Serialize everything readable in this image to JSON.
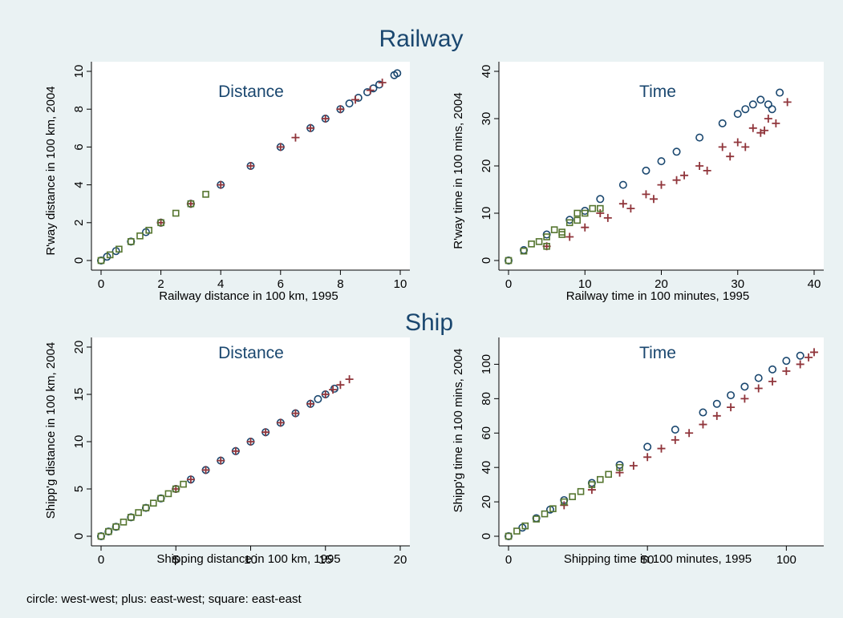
{
  "figure": {
    "background": "#eaf2f3",
    "plot_background": "#ffffff",
    "title_color": "#1a476f",
    "note": "circle: west-west; plus: east-west; square: east-east"
  },
  "groups": {
    "railway": {
      "title": "Railway"
    },
    "ship": {
      "title": "Ship"
    }
  },
  "series_styles": [
    {
      "label": "west-west",
      "marker": "circle",
      "color": "#1a476f"
    },
    {
      "label": "east-west",
      "marker": "plus",
      "color": "#90353b"
    },
    {
      "label": "east-east",
      "marker": "square",
      "color": "#55752f"
    }
  ],
  "chart_data": [
    {
      "id": "railway-distance",
      "type": "scatter",
      "title": "Distance",
      "xlabel": "Railway distance in 100 km, 1995",
      "ylabel": "R'way distance in 100 km, 2004",
      "xlim": [
        0,
        10
      ],
      "ylim": [
        0,
        10
      ],
      "xticks": [
        0,
        2,
        4,
        6,
        8,
        10
      ],
      "yticks": [
        0,
        2,
        4,
        6,
        8,
        10
      ],
      "grid": false,
      "series": [
        {
          "marker": "circle",
          "points": [
            [
              0,
              0
            ],
            [
              0.2,
              0.2
            ],
            [
              0.5,
              0.5
            ],
            [
              1,
              1
            ],
            [
              1.5,
              1.5
            ],
            [
              2,
              2
            ],
            [
              3,
              3
            ],
            [
              4,
              4
            ],
            [
              5,
              5
            ],
            [
              6,
              6
            ],
            [
              7,
              7
            ],
            [
              7.5,
              7.5
            ],
            [
              8,
              8
            ],
            [
              8.3,
              8.3
            ],
            [
              8.6,
              8.6
            ],
            [
              8.9,
              8.9
            ],
            [
              9.1,
              9.1
            ],
            [
              9.3,
              9.3
            ],
            [
              9.8,
              9.8
            ],
            [
              9.9,
              9.9
            ]
          ]
        },
        {
          "marker": "plus",
          "points": [
            [
              2,
              2
            ],
            [
              3,
              3
            ],
            [
              4,
              4
            ],
            [
              5,
              5
            ],
            [
              6,
              6
            ],
            [
              6.5,
              6.5
            ],
            [
              7,
              7
            ],
            [
              7.5,
              7.5
            ],
            [
              8,
              8
            ],
            [
              8.5,
              8.5
            ],
            [
              9,
              9
            ],
            [
              9.4,
              9.4
            ]
          ]
        },
        {
          "marker": "square",
          "points": [
            [
              0,
              0
            ],
            [
              0.3,
              0.3
            ],
            [
              0.6,
              0.6
            ],
            [
              1,
              1
            ],
            [
              1.3,
              1.3
            ],
            [
              1.6,
              1.6
            ],
            [
              2,
              2
            ],
            [
              2.5,
              2.5
            ],
            [
              3,
              3
            ],
            [
              3.5,
              3.5
            ]
          ]
        }
      ]
    },
    {
      "id": "railway-time",
      "type": "scatter",
      "title": "Time",
      "xlabel": "Railway time in 100 minutes, 1995",
      "ylabel": "R'way time in 100 mins, 2004",
      "xlim": [
        0,
        40
      ],
      "ylim": [
        0,
        40
      ],
      "xticks": [
        0,
        10,
        20,
        30,
        40
      ],
      "yticks": [
        0,
        10,
        20,
        30,
        40
      ],
      "grid": false,
      "series": [
        {
          "marker": "circle",
          "points": [
            [
              0,
              0
            ],
            [
              2,
              2.2
            ],
            [
              5,
              5.5
            ],
            [
              8,
              8.6
            ],
            [
              10,
              10.5
            ],
            [
              12,
              13
            ],
            [
              15,
              16
            ],
            [
              18,
              19
            ],
            [
              20,
              21
            ],
            [
              22,
              23
            ],
            [
              25,
              26
            ],
            [
              28,
              29
            ],
            [
              30,
              31
            ],
            [
              31,
              32
            ],
            [
              32,
              33
            ],
            [
              33,
              34
            ],
            [
              34,
              33
            ],
            [
              34.5,
              32
            ],
            [
              35.5,
              35.5
            ]
          ]
        },
        {
          "marker": "plus",
          "points": [
            [
              5,
              3
            ],
            [
              8,
              5
            ],
            [
              10,
              7
            ],
            [
              12,
              10
            ],
            [
              13,
              9
            ],
            [
              15,
              12
            ],
            [
              16,
              11
            ],
            [
              18,
              14
            ],
            [
              19,
              13
            ],
            [
              20,
              16
            ],
            [
              22,
              17
            ],
            [
              23,
              18
            ],
            [
              25,
              20
            ],
            [
              26,
              19
            ],
            [
              28,
              24
            ],
            [
              29,
              22
            ],
            [
              30,
              25
            ],
            [
              31,
              24
            ],
            [
              32,
              28
            ],
            [
              33,
              27
            ],
            [
              34,
              30
            ],
            [
              35,
              29
            ],
            [
              36.5,
              33.5
            ],
            [
              33.5,
              27.5
            ]
          ]
        },
        {
          "marker": "square",
          "points": [
            [
              0,
              0
            ],
            [
              2,
              2
            ],
            [
              3,
              3.5
            ],
            [
              4,
              4
            ],
            [
              5,
              5
            ],
            [
              6,
              6.5
            ],
            [
              7,
              6
            ],
            [
              8,
              8
            ],
            [
              9,
              8.5
            ],
            [
              10,
              10
            ],
            [
              11,
              11
            ],
            [
              12,
              11
            ],
            [
              5,
              3
            ],
            [
              7,
              5.5
            ],
            [
              9,
              10
            ]
          ]
        }
      ]
    },
    {
      "id": "ship-distance",
      "type": "scatter",
      "title": "Distance",
      "xlabel": "Shipping distance in 100 km, 1995",
      "ylabel": "Shipp'g distance in 100 km, 2004",
      "xlim": [
        0,
        20
      ],
      "ylim": [
        0,
        20
      ],
      "xticks": [
        0,
        5,
        10,
        15,
        20
      ],
      "yticks": [
        0,
        5,
        10,
        15,
        20
      ],
      "grid": false,
      "series": [
        {
          "marker": "circle",
          "points": [
            [
              0,
              0
            ],
            [
              0.5,
              0.5
            ],
            [
              1,
              1
            ],
            [
              2,
              2
            ],
            [
              3,
              3
            ],
            [
              4,
              4
            ],
            [
              5,
              5
            ],
            [
              6,
              6
            ],
            [
              7,
              7
            ],
            [
              8,
              8
            ],
            [
              9,
              9
            ],
            [
              10,
              10
            ],
            [
              11,
              11
            ],
            [
              12,
              12
            ],
            [
              13,
              13
            ],
            [
              14,
              14
            ],
            [
              14.5,
              14.5
            ],
            [
              15,
              15
            ],
            [
              15.6,
              15.6
            ]
          ]
        },
        {
          "marker": "plus",
          "points": [
            [
              5,
              5
            ],
            [
              6,
              6
            ],
            [
              7,
              7
            ],
            [
              8,
              8
            ],
            [
              9,
              9
            ],
            [
              10,
              10
            ],
            [
              11,
              11
            ],
            [
              12,
              12
            ],
            [
              13,
              13
            ],
            [
              14,
              14
            ],
            [
              15,
              15
            ],
            [
              15.5,
              15.5
            ],
            [
              16,
              16
            ],
            [
              16.6,
              16.6
            ]
          ]
        },
        {
          "marker": "square",
          "points": [
            [
              0,
              0
            ],
            [
              0.5,
              0.5
            ],
            [
              1,
              1
            ],
            [
              1.5,
              1.5
            ],
            [
              2,
              2
            ],
            [
              2.5,
              2.5
            ],
            [
              3,
              3
            ],
            [
              3.5,
              3.5
            ],
            [
              4,
              4
            ],
            [
              4.5,
              4.5
            ],
            [
              5,
              5
            ],
            [
              5.5,
              5.5
            ]
          ]
        }
      ]
    },
    {
      "id": "ship-time",
      "type": "scatter",
      "title": "Time",
      "xlabel": "Shipping time in 100 minutes, 1995",
      "ylabel": "Shipp'g time in 100 mins, 2004",
      "xlim": [
        0,
        110
      ],
      "ylim": [
        0,
        110
      ],
      "xticks": [
        0,
        50,
        100
      ],
      "yticks": [
        0,
        20,
        40,
        60,
        80,
        100
      ],
      "grid": false,
      "series": [
        {
          "marker": "circle",
          "points": [
            [
              0,
              0
            ],
            [
              5,
              5
            ],
            [
              10,
              10.5
            ],
            [
              15,
              15.5
            ],
            [
              20,
              21
            ],
            [
              30,
              31
            ],
            [
              40,
              41.5
            ],
            [
              50,
              52
            ],
            [
              60,
              62
            ],
            [
              70,
              72
            ],
            [
              75,
              77
            ],
            [
              80,
              82
            ],
            [
              85,
              87
            ],
            [
              90,
              92
            ],
            [
              95,
              97
            ],
            [
              100,
              102
            ],
            [
              105,
              105
            ]
          ]
        },
        {
          "marker": "plus",
          "points": [
            [
              20,
              18
            ],
            [
              30,
              27
            ],
            [
              40,
              37
            ],
            [
              45,
              41
            ],
            [
              50,
              46
            ],
            [
              55,
              51
            ],
            [
              60,
              56
            ],
            [
              65,
              60
            ],
            [
              70,
              65
            ],
            [
              75,
              70
            ],
            [
              80,
              75
            ],
            [
              85,
              80
            ],
            [
              90,
              86
            ],
            [
              95,
              90
            ],
            [
              100,
              96
            ],
            [
              105,
              100
            ],
            [
              108,
              104
            ],
            [
              110,
              107
            ]
          ]
        },
        {
          "marker": "square",
          "points": [
            [
              0,
              0
            ],
            [
              3,
              3
            ],
            [
              6,
              6
            ],
            [
              10,
              10
            ],
            [
              13,
              13
            ],
            [
              16,
              16
            ],
            [
              20,
              20
            ],
            [
              23,
              23
            ],
            [
              26,
              26
            ],
            [
              30,
              30
            ],
            [
              33,
              33
            ],
            [
              36,
              36
            ],
            [
              40,
              40
            ]
          ]
        }
      ]
    }
  ]
}
